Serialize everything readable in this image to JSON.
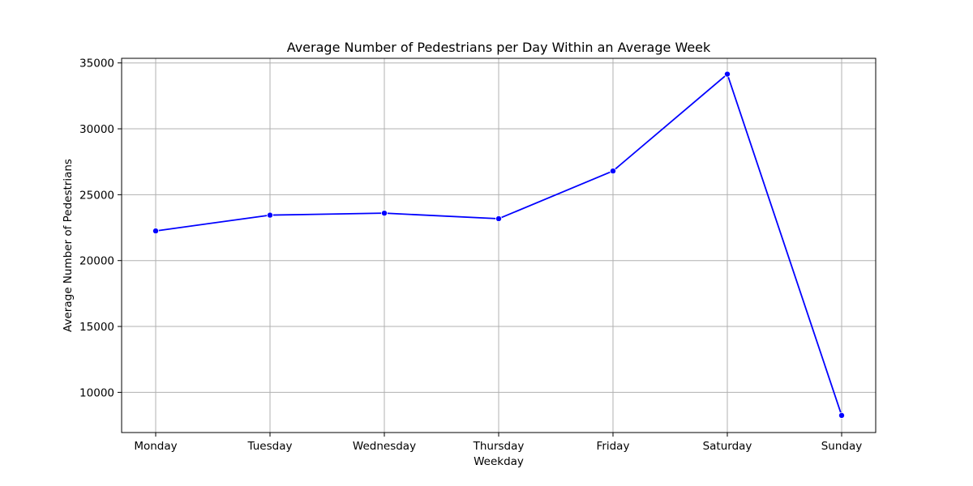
{
  "chart_data": {
    "type": "line",
    "title": "Average Number of Pedestrians per Day Within an Average Week",
    "xlabel": "Weekday",
    "ylabel": "Average Number of Pedestrians",
    "categories": [
      "Monday",
      "Tuesday",
      "Wednesday",
      "Thursday",
      "Friday",
      "Saturday",
      "Sunday"
    ],
    "series": [
      {
        "name": "",
        "values": [
          22250,
          23450,
          23600,
          23180,
          26800,
          34150,
          8250
        ]
      }
    ],
    "yticks": [
      10000,
      15000,
      20000,
      25000,
      30000,
      35000
    ],
    "ylim": [
      6950,
      35350
    ],
    "grid": true,
    "legend": "none",
    "marker": "circle",
    "line_color": "#0000ff",
    "grid_color": "#b0b0b0"
  }
}
